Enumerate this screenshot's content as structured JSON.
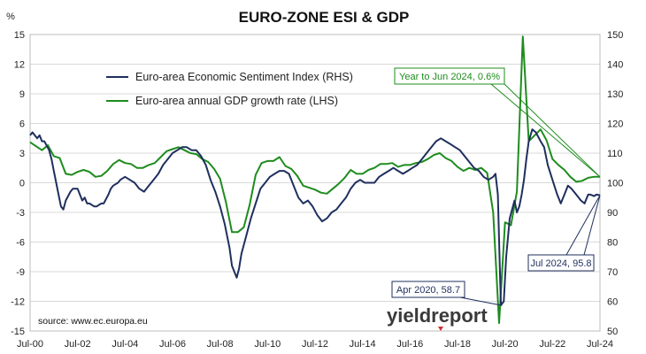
{
  "chart_data": {
    "type": "line",
    "title": "EURO-ZONE ESI & GDP",
    "left_axis_unit": "%",
    "left_axis": {
      "min": -15,
      "max": 15,
      "ticks": [
        15,
        12,
        9,
        6,
        3,
        0,
        -3,
        -6,
        -9,
        -12,
        -15
      ]
    },
    "right_axis": {
      "min": 50,
      "max": 150,
      "ticks": [
        150,
        140,
        130,
        120,
        110,
        100,
        90,
        80,
        70,
        60,
        50
      ]
    },
    "x_ticks": [
      "Jul-00",
      "Jul-02",
      "Jul-04",
      "Jul-06",
      "Jul-08",
      "Jul-10",
      "Jul-12",
      "Jul-14",
      "Jul-16",
      "Jul-18",
      "Jul-20",
      "Jul-22",
      "Jul-24"
    ],
    "x_range": {
      "start": 2000.5,
      "end": 2024.5
    },
    "series": [
      {
        "name": "Euro-area Economic Sentiment Index (RHS)",
        "axis": "right",
        "color": "#1f2f5e",
        "points": [
          [
            2000.5,
            116
          ],
          [
            2000.6,
            117
          ],
          [
            2000.8,
            115
          ],
          [
            2000.9,
            116
          ],
          [
            2001.0,
            114
          ],
          [
            2001.1,
            114
          ],
          [
            2001.3,
            111
          ],
          [
            2001.4,
            108
          ],
          [
            2001.5,
            104
          ],
          [
            2001.6,
            100
          ],
          [
            2001.7,
            96
          ],
          [
            2001.8,
            92
          ],
          [
            2001.9,
            91
          ],
          [
            2002.0,
            94
          ],
          [
            2002.2,
            97
          ],
          [
            2002.3,
            98
          ],
          [
            2002.5,
            98
          ],
          [
            2002.6,
            96
          ],
          [
            2002.7,
            94
          ],
          [
            2002.8,
            95
          ],
          [
            2002.9,
            93
          ],
          [
            2003.0,
            93
          ],
          [
            2003.2,
            92
          ],
          [
            2003.3,
            92
          ],
          [
            2003.5,
            93
          ],
          [
            2003.6,
            93
          ],
          [
            2003.8,
            96
          ],
          [
            2003.9,
            98
          ],
          [
            2004.0,
            99
          ],
          [
            2004.2,
            100
          ],
          [
            2004.3,
            101
          ],
          [
            2004.5,
            102
          ],
          [
            2004.7,
            101
          ],
          [
            2004.9,
            100
          ],
          [
            2005.1,
            98
          ],
          [
            2005.3,
            97
          ],
          [
            2005.5,
            99
          ],
          [
            2005.7,
            101
          ],
          [
            2005.9,
            103
          ],
          [
            2006.1,
            106
          ],
          [
            2006.3,
            108
          ],
          [
            2006.5,
            110
          ],
          [
            2006.7,
            111
          ],
          [
            2006.9,
            112
          ],
          [
            2007.1,
            112
          ],
          [
            2007.3,
            111
          ],
          [
            2007.5,
            111
          ],
          [
            2007.7,
            109
          ],
          [
            2007.9,
            106
          ],
          [
            2008.1,
            101
          ],
          [
            2008.3,
            97
          ],
          [
            2008.5,
            92
          ],
          [
            2008.7,
            86
          ],
          [
            2008.9,
            78
          ],
          [
            2009.0,
            72
          ],
          [
            2009.1,
            70
          ],
          [
            2009.2,
            68
          ],
          [
            2009.3,
            71
          ],
          [
            2009.4,
            76
          ],
          [
            2009.6,
            82
          ],
          [
            2009.8,
            88
          ],
          [
            2010.0,
            93
          ],
          [
            2010.2,
            98
          ],
          [
            2010.4,
            100
          ],
          [
            2010.6,
            102
          ],
          [
            2010.8,
            103
          ],
          [
            2011.0,
            104
          ],
          [
            2011.2,
            104
          ],
          [
            2011.4,
            103
          ],
          [
            2011.6,
            99
          ],
          [
            2011.8,
            95
          ],
          [
            2012.0,
            93
          ],
          [
            2012.2,
            94
          ],
          [
            2012.4,
            92
          ],
          [
            2012.6,
            89
          ],
          [
            2012.8,
            87
          ],
          [
            2013.0,
            88
          ],
          [
            2013.2,
            90
          ],
          [
            2013.4,
            91
          ],
          [
            2013.6,
            93
          ],
          [
            2013.8,
            95
          ],
          [
            2014.0,
            98
          ],
          [
            2014.2,
            100
          ],
          [
            2014.4,
            101
          ],
          [
            2014.6,
            100
          ],
          [
            2014.8,
            100
          ],
          [
            2015.0,
            100
          ],
          [
            2015.2,
            102
          ],
          [
            2015.4,
            103
          ],
          [
            2015.6,
            104
          ],
          [
            2015.8,
            105
          ],
          [
            2016.0,
            104
          ],
          [
            2016.2,
            103
          ],
          [
            2016.4,
            104
          ],
          [
            2016.6,
            105
          ],
          [
            2016.8,
            106
          ],
          [
            2017.0,
            108
          ],
          [
            2017.2,
            110
          ],
          [
            2017.4,
            112
          ],
          [
            2017.6,
            114
          ],
          [
            2017.8,
            115
          ],
          [
            2018.0,
            114
          ],
          [
            2018.2,
            113
          ],
          [
            2018.4,
            112
          ],
          [
            2018.6,
            111
          ],
          [
            2018.8,
            109
          ],
          [
            2019.0,
            107
          ],
          [
            2019.2,
            105
          ],
          [
            2019.4,
            104
          ],
          [
            2019.6,
            102
          ],
          [
            2019.8,
            101
          ],
          [
            2020.0,
            102
          ],
          [
            2020.1,
            103
          ],
          [
            2020.2,
            96
          ],
          [
            2020.3,
            66
          ],
          [
            2020.33,
            58.7
          ],
          [
            2020.45,
            60
          ],
          [
            2020.55,
            75
          ],
          [
            2020.7,
            88
          ],
          [
            2020.9,
            94
          ],
          [
            2021.0,
            90
          ],
          [
            2021.1,
            92
          ],
          [
            2021.2,
            96
          ],
          [
            2021.3,
            101
          ],
          [
            2021.4,
            108
          ],
          [
            2021.5,
            114
          ],
          [
            2021.65,
            118
          ],
          [
            2021.8,
            117
          ],
          [
            2022.0,
            114
          ],
          [
            2022.15,
            112
          ],
          [
            2022.3,
            106
          ],
          [
            2022.5,
            101
          ],
          [
            2022.7,
            96
          ],
          [
            2022.85,
            93
          ],
          [
            2023.0,
            96
          ],
          [
            2023.15,
            99
          ],
          [
            2023.3,
            98
          ],
          [
            2023.5,
            96
          ],
          [
            2023.7,
            94
          ],
          [
            2023.85,
            93
          ],
          [
            2024.0,
            96
          ],
          [
            2024.1,
            96
          ],
          [
            2024.25,
            95.5
          ],
          [
            2024.35,
            96
          ],
          [
            2024.5,
            95.8
          ]
        ]
      },
      {
        "name": "Euro-area annual GDP growth rate (LHS)",
        "axis": "left",
        "color": "#1e8c1e",
        "points": [
          [
            2000.5,
            4.1
          ],
          [
            2001.0,
            3.3
          ],
          [
            2001.25,
            3.8
          ],
          [
            2001.5,
            2.7
          ],
          [
            2001.75,
            2.5
          ],
          [
            2002.0,
            0.9
          ],
          [
            2002.25,
            0.8
          ],
          [
            2002.5,
            1.1
          ],
          [
            2002.75,
            1.3
          ],
          [
            2003.0,
            1.1
          ],
          [
            2003.25,
            0.6
          ],
          [
            2003.5,
            0.7
          ],
          [
            2003.75,
            1.2
          ],
          [
            2004.0,
            1.9
          ],
          [
            2004.25,
            2.3
          ],
          [
            2004.5,
            2.0
          ],
          [
            2004.75,
            1.9
          ],
          [
            2005.0,
            1.5
          ],
          [
            2005.25,
            1.5
          ],
          [
            2005.5,
            1.8
          ],
          [
            2005.75,
            2.0
          ],
          [
            2006.0,
            2.6
          ],
          [
            2006.25,
            3.2
          ],
          [
            2006.5,
            3.4
          ],
          [
            2006.75,
            3.6
          ],
          [
            2007.0,
            3.3
          ],
          [
            2007.25,
            3.0
          ],
          [
            2007.5,
            2.9
          ],
          [
            2007.75,
            2.4
          ],
          [
            2008.0,
            2.1
          ],
          [
            2008.25,
            1.4
          ],
          [
            2008.5,
            0.4
          ],
          [
            2008.75,
            -2.0
          ],
          [
            2009.0,
            -5.0
          ],
          [
            2009.25,
            -5.0
          ],
          [
            2009.5,
            -4.5
          ],
          [
            2009.75,
            -2.2
          ],
          [
            2010.0,
            0.8
          ],
          [
            2010.25,
            2.0
          ],
          [
            2010.5,
            2.2
          ],
          [
            2010.75,
            2.2
          ],
          [
            2011.0,
            2.6
          ],
          [
            2011.25,
            1.7
          ],
          [
            2011.5,
            1.4
          ],
          [
            2011.75,
            0.7
          ],
          [
            2012.0,
            -0.3
          ],
          [
            2012.25,
            -0.5
          ],
          [
            2012.5,
            -0.7
          ],
          [
            2012.75,
            -1.0
          ],
          [
            2013.0,
            -1.1
          ],
          [
            2013.25,
            -0.6
          ],
          [
            2013.5,
            -0.1
          ],
          [
            2013.75,
            0.5
          ],
          [
            2014.0,
            1.3
          ],
          [
            2014.25,
            0.9
          ],
          [
            2014.5,
            0.9
          ],
          [
            2014.75,
            1.3
          ],
          [
            2015.0,
            1.5
          ],
          [
            2015.25,
            1.9
          ],
          [
            2015.5,
            1.9
          ],
          [
            2015.75,
            2.0
          ],
          [
            2016.0,
            1.6
          ],
          [
            2016.25,
            1.8
          ],
          [
            2016.5,
            1.8
          ],
          [
            2016.75,
            2.0
          ],
          [
            2017.0,
            2.1
          ],
          [
            2017.25,
            2.4
          ],
          [
            2017.5,
            2.8
          ],
          [
            2017.75,
            3.0
          ],
          [
            2018.0,
            2.5
          ],
          [
            2018.25,
            2.2
          ],
          [
            2018.5,
            1.6
          ],
          [
            2018.75,
            1.2
          ],
          [
            2019.0,
            1.5
          ],
          [
            2019.25,
            1.3
          ],
          [
            2019.5,
            1.5
          ],
          [
            2019.75,
            1.0
          ],
          [
            2020.0,
            -3.0
          ],
          [
            2020.25,
            -14.2
          ],
          [
            2020.5,
            -4.0
          ],
          [
            2020.75,
            -4.3
          ],
          [
            2021.0,
            -0.9
          ],
          [
            2021.25,
            14.8
          ],
          [
            2021.5,
            4.2
          ],
          [
            2021.75,
            4.8
          ],
          [
            2022.0,
            5.4
          ],
          [
            2022.25,
            4.3
          ],
          [
            2022.5,
            2.4
          ],
          [
            2022.75,
            1.8
          ],
          [
            2023.0,
            1.3
          ],
          [
            2023.25,
            0.6
          ],
          [
            2023.5,
            0.1
          ],
          [
            2023.75,
            0.2
          ],
          [
            2024.0,
            0.5
          ],
          [
            2024.25,
            0.6
          ],
          [
            2024.5,
            0.6
          ]
        ]
      }
    ],
    "annotations": [
      {
        "text": "Year to Jun 2024, 0.6%",
        "color": "#1e8c1e",
        "target_x": 2024.5,
        "target_y": 0.6,
        "axis": "left"
      },
      {
        "text": "Jul 2024, 95.8",
        "color": "#1f2f5e",
        "target_x": 2024.5,
        "target_y": 95.8,
        "axis": "right"
      },
      {
        "text": "Apr 2020, 58.7",
        "color": "#1f2f5e",
        "target_x": 2020.33,
        "target_y": 58.7,
        "axis": "right"
      }
    ],
    "grid": "horizontal",
    "legend_placement": "top-left"
  },
  "source": "source: www.ec.europa.eu",
  "logo": "yieldreport"
}
